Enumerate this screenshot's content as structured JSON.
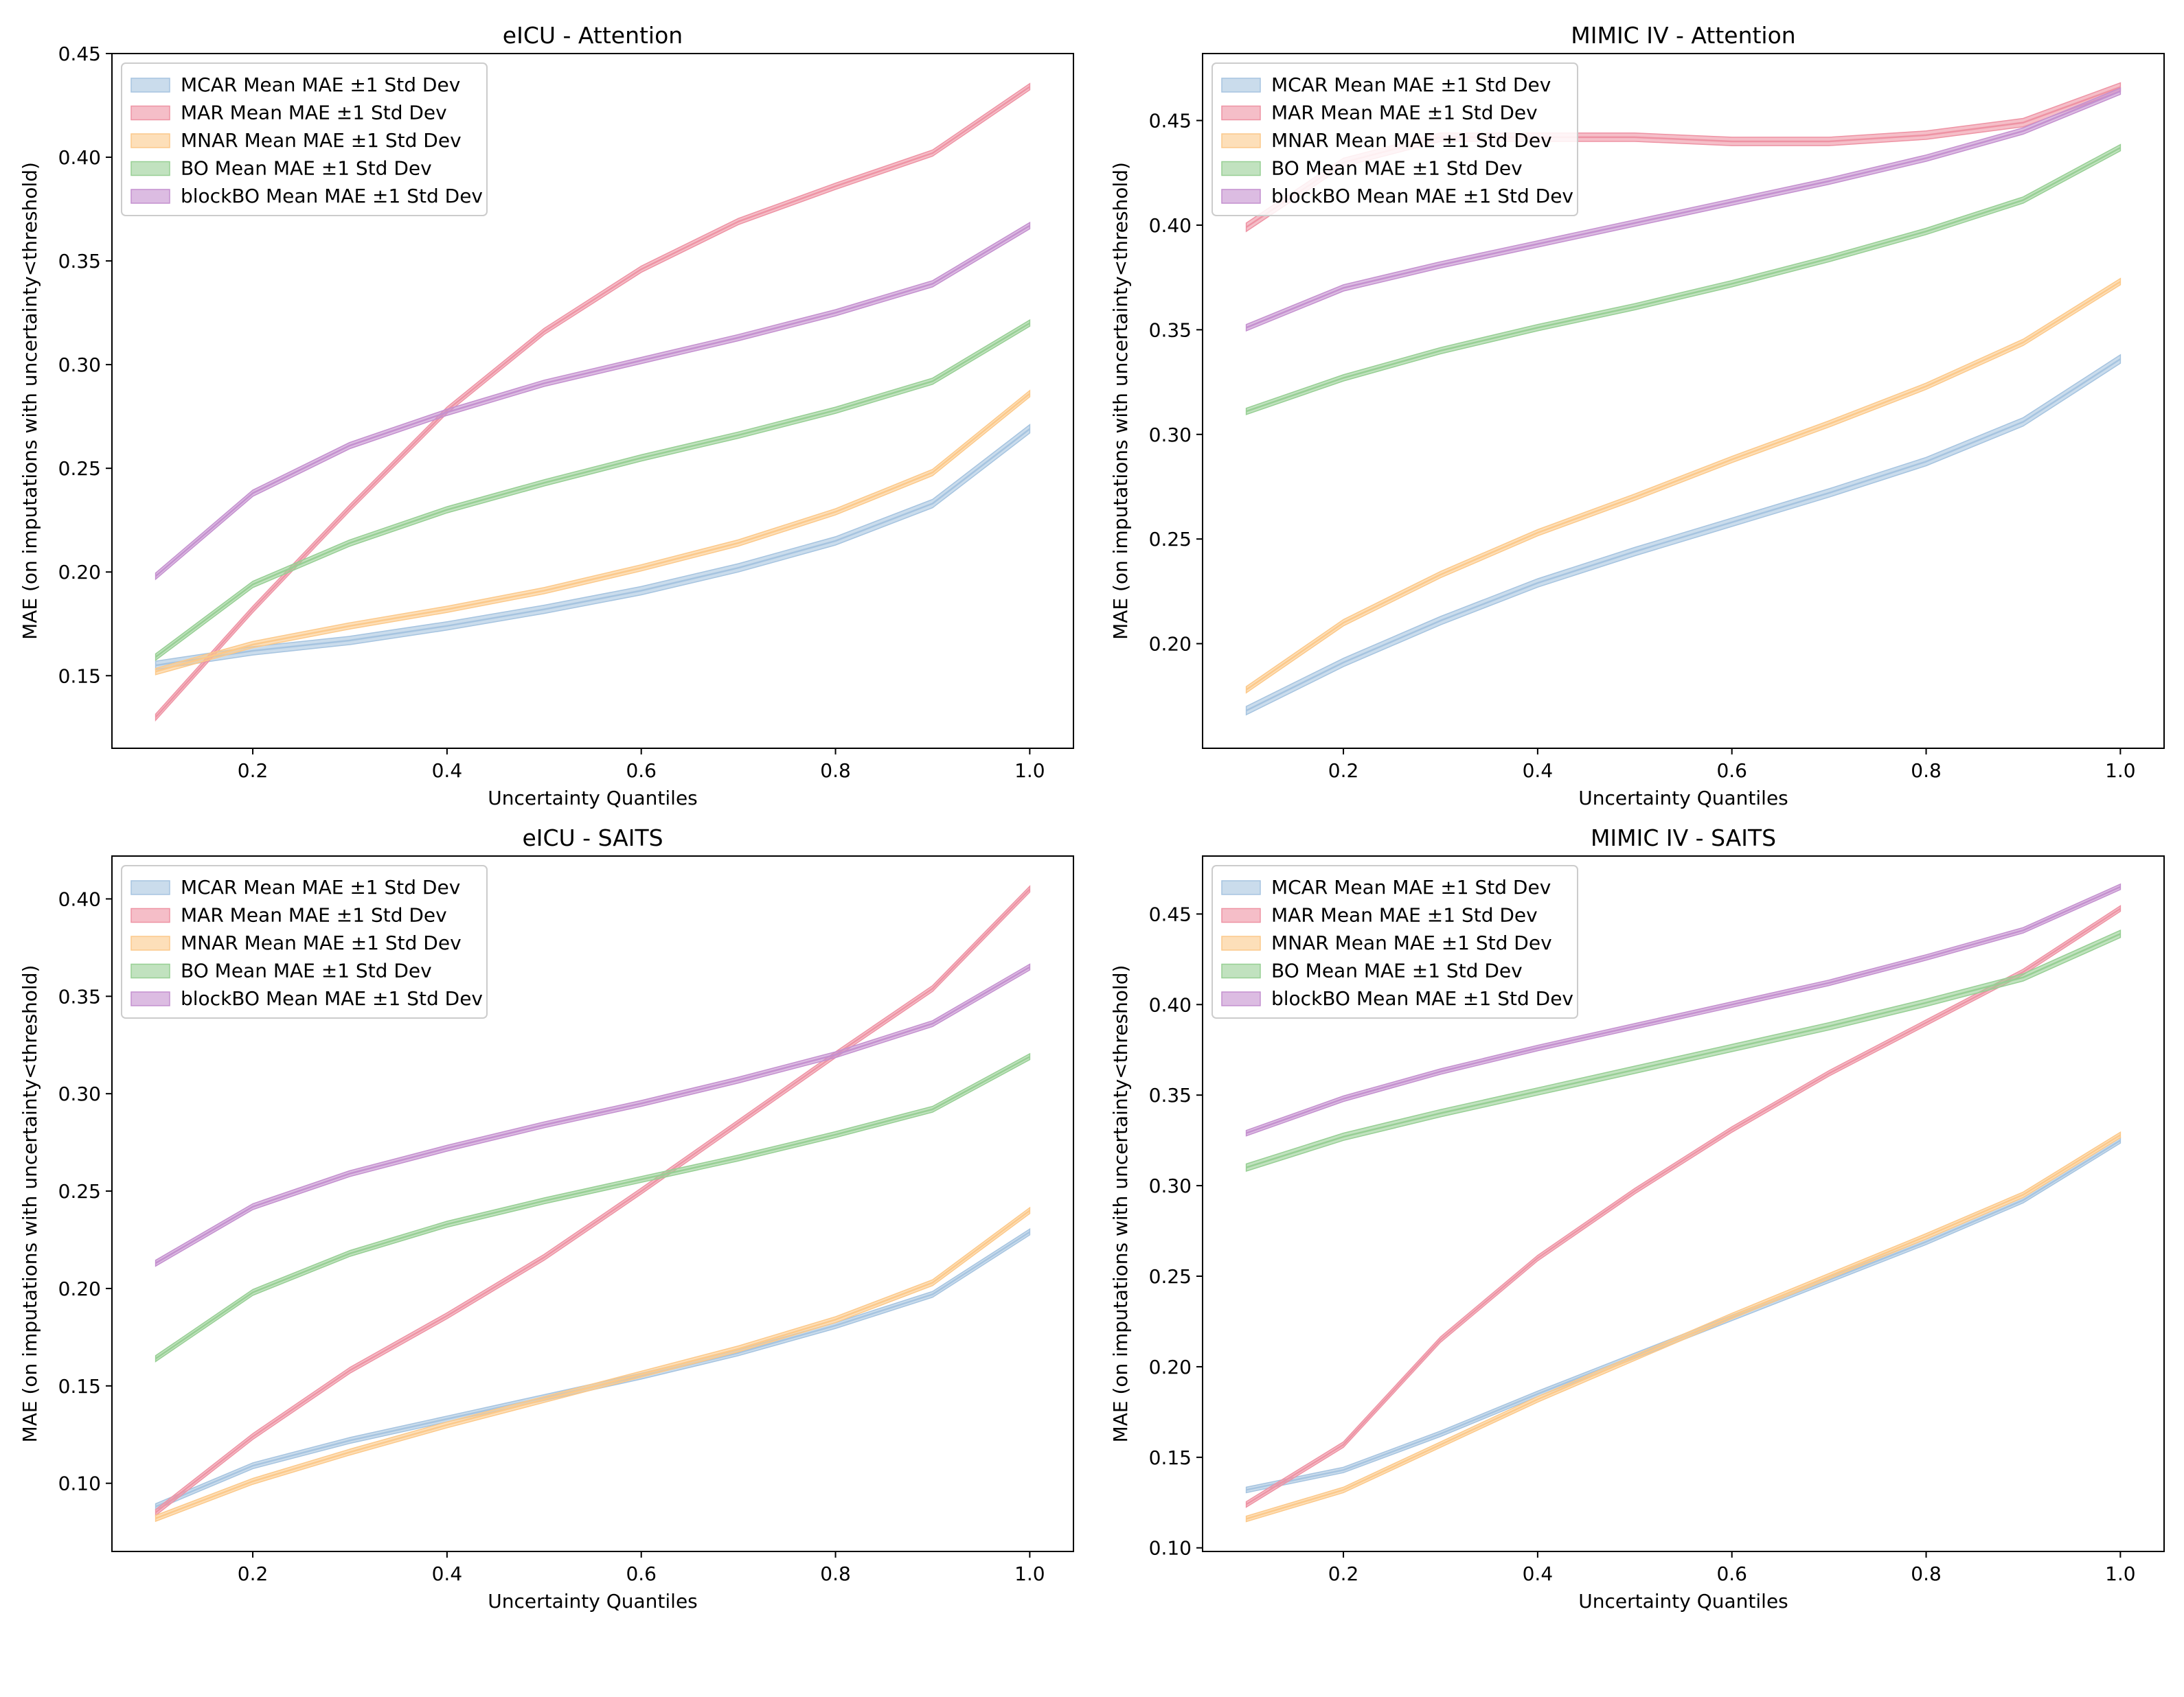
{
  "figure": {
    "title": ""
  },
  "colors": {
    "MCAR": "#a6c4e0",
    "MAR": "#ee93a4",
    "MNAR": "#fcc98a",
    "BO": "#97cf94",
    "blockBO": "#c490cf"
  },
  "chart_data": [
    {
      "type": "line",
      "title": "eICU - Attention",
      "xlabel": "Uncertainty Quantiles",
      "ylabel": "MAE (on imputations with uncertainty<threshold)",
      "xlim": [
        0.055,
        1.045
      ],
      "ylim": [
        0.115,
        0.45
      ],
      "xticks": [
        "0.2",
        "0.4",
        "0.6",
        "0.8",
        "1.0"
      ],
      "yticks": [
        "0.15",
        "0.20",
        "0.25",
        "0.30",
        "0.35",
        "0.40",
        "0.45"
      ],
      "x": [
        0.1,
        0.2,
        0.3,
        0.4,
        0.5,
        0.6,
        0.7,
        0.8,
        0.9,
        1.0
      ],
      "legend_position": "upper-left",
      "series": [
        {
          "key": "MCAR",
          "name": "MCAR Mean MAE ±1 Std Dev",
          "values": [
            0.155,
            0.162,
            0.167,
            0.174,
            0.182,
            0.191,
            0.202,
            0.215,
            0.233,
            0.269
          ],
          "std": 0.002
        },
        {
          "key": "MAR",
          "name": "MAR Mean MAE ±1 Std Dev",
          "values": [
            0.13,
            0.182,
            0.231,
            0.278,
            0.316,
            0.346,
            0.369,
            0.386,
            0.402,
            0.434
          ],
          "std": 0.0015
        },
        {
          "key": "MNAR",
          "name": "MNAR Mean MAE ±1 Std Dev",
          "values": [
            0.152,
            0.165,
            0.174,
            0.182,
            0.191,
            0.202,
            0.214,
            0.229,
            0.248,
            0.286
          ],
          "std": 0.0015
        },
        {
          "key": "BO",
          "name": "BO Mean MAE ±1 Std Dev",
          "values": [
            0.159,
            0.194,
            0.214,
            0.23,
            0.243,
            0.255,
            0.266,
            0.278,
            0.292,
            0.32
          ],
          "std": 0.0015
        },
        {
          "key": "blockBO",
          "name": "blockBO Mean MAE ±1 Std Dev",
          "values": [
            0.198,
            0.238,
            0.261,
            0.277,
            0.291,
            0.302,
            0.313,
            0.325,
            0.339,
            0.367
          ],
          "std": 0.0015
        }
      ]
    },
    {
      "type": "line",
      "title": "MIMIC IV - Attention",
      "xlabel": "Uncertainty Quantiles",
      "ylabel": "MAE (on imputations with uncertainty<threshold)",
      "xlim": [
        0.055,
        1.045
      ],
      "ylim": [
        0.15,
        0.482
      ],
      "xticks": [
        "0.2",
        "0.4",
        "0.6",
        "0.8",
        "1.0"
      ],
      "yticks": [
        "0.20",
        "0.25",
        "0.30",
        "0.35",
        "0.40",
        "0.45"
      ],
      "x": [
        0.1,
        0.2,
        0.3,
        0.4,
        0.5,
        0.6,
        0.7,
        0.8,
        0.9,
        1.0
      ],
      "legend_position": "upper-left",
      "series": [
        {
          "key": "MCAR",
          "name": "MCAR Mean MAE ±1 Std Dev",
          "values": [
            0.168,
            0.191,
            0.211,
            0.229,
            0.244,
            0.258,
            0.272,
            0.287,
            0.306,
            0.336
          ],
          "std": 0.002
        },
        {
          "key": "MAR",
          "name": "MAR Mean MAE ±1 Std Dev",
          "values": [
            0.399,
            0.43,
            0.442,
            0.442,
            0.442,
            0.44,
            0.44,
            0.443,
            0.449,
            0.466
          ],
          "std": 0.002
        },
        {
          "key": "MNAR",
          "name": "MNAR Mean MAE ±1 Std Dev",
          "values": [
            0.178,
            0.21,
            0.233,
            0.253,
            0.27,
            0.288,
            0.305,
            0.323,
            0.344,
            0.373
          ],
          "std": 0.0015
        },
        {
          "key": "BO",
          "name": "BO Mean MAE ±1 Std Dev",
          "values": [
            0.311,
            0.327,
            0.34,
            0.351,
            0.361,
            0.372,
            0.384,
            0.397,
            0.412,
            0.437
          ],
          "std": 0.0015
        },
        {
          "key": "blockBO",
          "name": "blockBO Mean MAE ±1 Std Dev",
          "values": [
            0.351,
            0.37,
            0.381,
            0.391,
            0.401,
            0.411,
            0.421,
            0.432,
            0.445,
            0.464
          ],
          "std": 0.0015
        }
      ]
    },
    {
      "type": "line",
      "title": "eICU - SAITS",
      "xlabel": "Uncertainty Quantiles",
      "ylabel": "MAE (on imputations with uncertainty<threshold)",
      "xlim": [
        0.055,
        1.045
      ],
      "ylim": [
        0.065,
        0.422
      ],
      "xticks": [
        "0.2",
        "0.4",
        "0.6",
        "0.8",
        "1.0"
      ],
      "yticks": [
        "0.10",
        "0.15",
        "0.20",
        "0.25",
        "0.30",
        "0.35",
        "0.40"
      ],
      "x": [
        0.1,
        0.2,
        0.3,
        0.4,
        0.5,
        0.6,
        0.7,
        0.8,
        0.9,
        1.0
      ],
      "legend_position": "upper-left",
      "series": [
        {
          "key": "MCAR",
          "name": "MCAR Mean MAE ±1 Std Dev",
          "values": [
            0.088,
            0.109,
            0.122,
            0.133,
            0.144,
            0.155,
            0.167,
            0.181,
            0.197,
            0.229
          ],
          "std": 0.0015
        },
        {
          "key": "MAR",
          "name": "MAR Mean MAE ±1 Std Dev",
          "values": [
            0.085,
            0.124,
            0.158,
            0.186,
            0.216,
            0.25,
            0.285,
            0.32,
            0.354,
            0.405
          ],
          "std": 0.0015
        },
        {
          "key": "MNAR",
          "name": "MNAR Mean MAE ±1 Std Dev",
          "values": [
            0.082,
            0.101,
            0.116,
            0.13,
            0.143,
            0.156,
            0.169,
            0.184,
            0.203,
            0.24
          ],
          "std": 0.0015
        },
        {
          "key": "BO",
          "name": "BO Mean MAE ±1 Std Dev",
          "values": [
            0.164,
            0.198,
            0.218,
            0.233,
            0.245,
            0.256,
            0.267,
            0.279,
            0.292,
            0.319
          ],
          "std": 0.0015
        },
        {
          "key": "blockBO",
          "name": "blockBO Mean MAE ±1 Std Dev",
          "values": [
            0.213,
            0.242,
            0.259,
            0.272,
            0.284,
            0.295,
            0.307,
            0.32,
            0.336,
            0.365
          ],
          "std": 0.0015
        }
      ]
    },
    {
      "type": "line",
      "title": "MIMIC IV - SAITS",
      "xlabel": "Uncertainty Quantiles",
      "ylabel": "MAE (on imputations with uncertainty<threshold)",
      "xlim": [
        0.055,
        1.045
      ],
      "ylim": [
        0.098,
        0.482
      ],
      "xticks": [
        "0.2",
        "0.4",
        "0.6",
        "0.8",
        "1.0"
      ],
      "yticks": [
        "0.10",
        "0.15",
        "0.20",
        "0.25",
        "0.30",
        "0.35",
        "0.40",
        "0.45"
      ],
      "x": [
        0.1,
        0.2,
        0.3,
        0.4,
        0.5,
        0.6,
        0.7,
        0.8,
        0.9,
        1.0
      ],
      "legend_position": "upper-left",
      "series": [
        {
          "key": "MCAR",
          "name": "MCAR Mean MAE ±1 Std Dev",
          "values": [
            0.132,
            0.143,
            0.163,
            0.185,
            0.206,
            0.227,
            0.248,
            0.269,
            0.292,
            0.325
          ],
          "std": 0.0015
        },
        {
          "key": "MAR",
          "name": "MAR Mean MAE ±1 Std Dev",
          "values": [
            0.124,
            0.157,
            0.215,
            0.26,
            0.297,
            0.331,
            0.362,
            0.39,
            0.418,
            0.453
          ],
          "std": 0.0015
        },
        {
          "key": "MNAR",
          "name": "MNAR Mean MAE ±1 Std Dev",
          "values": [
            0.116,
            0.132,
            0.157,
            0.182,
            0.205,
            0.228,
            0.25,
            0.272,
            0.295,
            0.328
          ],
          "std": 0.0015
        },
        {
          "key": "BO",
          "name": "BO Mean MAE ±1 Std Dev",
          "values": [
            0.31,
            0.327,
            0.34,
            0.352,
            0.364,
            0.376,
            0.388,
            0.401,
            0.415,
            0.439
          ],
          "std": 0.002
        },
        {
          "key": "blockBO",
          "name": "blockBO Mean MAE ±1 Std Dev",
          "values": [
            0.329,
            0.348,
            0.363,
            0.376,
            0.388,
            0.4,
            0.412,
            0.426,
            0.441,
            0.465
          ],
          "std": 0.0015
        }
      ]
    }
  ]
}
